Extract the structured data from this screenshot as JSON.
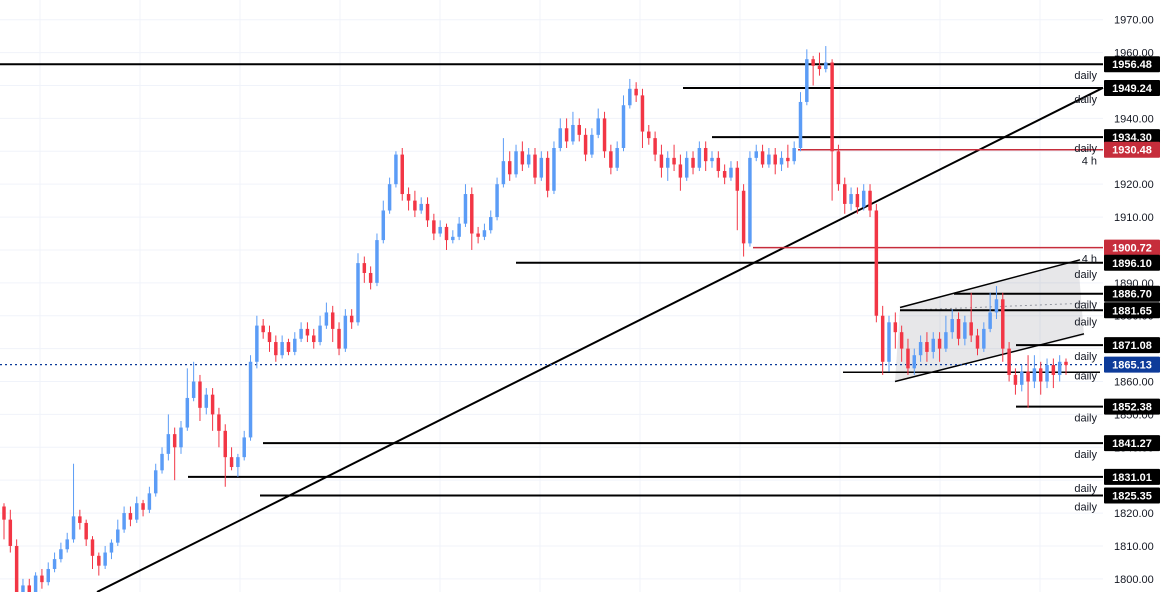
{
  "chart_data": {
    "type": "candlestick",
    "ylim": [
      1796,
      1976
    ],
    "y_ticks": [
      1800,
      1810,
      1820,
      1830,
      1840,
      1850,
      1860,
      1870,
      1880,
      1890,
      1900,
      1910,
      1920,
      1930,
      1940,
      1950,
      1960,
      1970
    ],
    "grid": true,
    "colors": {
      "up": "#5b9cf6",
      "down": "#f23645",
      "background": "#ffffff",
      "grid": "#f0f3fa",
      "level": "#000000",
      "level_4h": "#c62d3b",
      "current": "#0d3b9a"
    },
    "current_price": 1865.13,
    "levels": [
      {
        "price": 1956.48,
        "label": "1956.48",
        "timeframe": "daily",
        "color": "black"
      },
      {
        "price": 1949.24,
        "label": "1949.24",
        "timeframe": "daily",
        "color": "black"
      },
      {
        "price": 1934.3,
        "label": "1934.30",
        "timeframe": "daily",
        "color": "black"
      },
      {
        "price": 1930.48,
        "label": "1930.48",
        "timeframe": "4 h",
        "color": "red"
      },
      {
        "price": 1900.72,
        "label": "1900.72",
        "timeframe": "4 h",
        "color": "red"
      },
      {
        "price": 1896.1,
        "label": "1896.10",
        "timeframe": "daily",
        "color": "black"
      },
      {
        "price": 1886.7,
        "label": "1886.70",
        "timeframe": "daily",
        "color": "black"
      },
      {
        "price": 1881.65,
        "label": "1881.65",
        "timeframe": "daily",
        "color": "black"
      },
      {
        "price": 1871.08,
        "label": "1871.08",
        "timeframe": "daily",
        "color": "black"
      },
      {
        "price": 1865.13,
        "label": "1865.13",
        "timeframe": "daily",
        "color": "blue"
      },
      {
        "price": 1852.38,
        "label": "1852.38",
        "timeframe": "daily",
        "color": "black"
      },
      {
        "price": 1841.27,
        "label": "1841.27",
        "timeframe": "daily",
        "color": "black"
      },
      {
        "price": 1831.01,
        "label": "1831.01",
        "timeframe": "daily",
        "color": "black"
      },
      {
        "price": 1825.35,
        "label": "1825.35",
        "timeframe": "daily",
        "color": "black"
      }
    ],
    "candles": [
      [
        1822,
        1818,
        1823,
        1812
      ],
      [
        1818,
        1810,
        1821,
        1808
      ],
      [
        1810,
        1794,
        1812,
        1792
      ],
      [
        1794,
        1798,
        1800,
        1792
      ],
      [
        1798,
        1796,
        1800,
        1794
      ],
      [
        1796,
        1801,
        1802,
        1795
      ],
      [
        1801,
        1799,
        1803,
        1797
      ],
      [
        1799,
        1803,
        1805,
        1798
      ],
      [
        1803,
        1806,
        1808,
        1802
      ],
      [
        1806,
        1809,
        1811,
        1805
      ],
      [
        1809,
        1812,
        1814,
        1808
      ],
      [
        1812,
        1819,
        1835,
        1811
      ],
      [
        1819,
        1817,
        1821,
        1815
      ],
      [
        1817,
        1812,
        1818,
        1810
      ],
      [
        1812,
        1807,
        1813,
        1803
      ],
      [
        1807,
        1804,
        1808,
        1801
      ],
      [
        1804,
        1808,
        1810,
        1803
      ],
      [
        1808,
        1811,
        1812,
        1806
      ],
      [
        1811,
        1815,
        1818,
        1810
      ],
      [
        1815,
        1820,
        1822,
        1814
      ],
      [
        1820,
        1818,
        1822,
        1816
      ],
      [
        1818,
        1823,
        1825,
        1817
      ],
      [
        1823,
        1821,
        1824,
        1819
      ],
      [
        1821,
        1826,
        1828,
        1820
      ],
      [
        1826,
        1833,
        1835,
        1825
      ],
      [
        1833,
        1838,
        1840,
        1832
      ],
      [
        1838,
        1844,
        1850,
        1836
      ],
      [
        1844,
        1840,
        1846,
        1830
      ],
      [
        1840,
        1846,
        1848,
        1838
      ],
      [
        1846,
        1855,
        1864,
        1845
      ],
      [
        1855,
        1860,
        1866,
        1854
      ],
      [
        1860,
        1852,
        1862,
        1848
      ],
      [
        1852,
        1856,
        1858,
        1850
      ],
      [
        1856,
        1850,
        1858,
        1845
      ],
      [
        1850,
        1845,
        1852,
        1840
      ],
      [
        1845,
        1837,
        1847,
        1828
      ],
      [
        1837,
        1834,
        1840,
        1833
      ],
      [
        1834,
        1837,
        1838,
        1831
      ],
      [
        1837,
        1843,
        1845,
        1836
      ],
      [
        1843,
        1866,
        1868,
        1842
      ],
      [
        1866,
        1877,
        1880,
        1864
      ],
      [
        1877,
        1875,
        1879,
        1873
      ],
      [
        1875,
        1872,
        1877,
        1869
      ],
      [
        1872,
        1868,
        1874,
        1866
      ],
      [
        1868,
        1872,
        1874,
        1867
      ],
      [
        1872,
        1869,
        1873,
        1868
      ],
      [
        1869,
        1873,
        1875,
        1868
      ],
      [
        1873,
        1876,
        1878,
        1872
      ],
      [
        1876,
        1874,
        1878,
        1872
      ],
      [
        1874,
        1872,
        1876,
        1870
      ],
      [
        1872,
        1877,
        1880,
        1871
      ],
      [
        1877,
        1881,
        1884,
        1876
      ],
      [
        1881,
        1876,
        1883,
        1872
      ],
      [
        1876,
        1870,
        1878,
        1868
      ],
      [
        1870,
        1880,
        1882,
        1869
      ],
      [
        1880,
        1878,
        1882,
        1876
      ],
      [
        1878,
        1896,
        1899,
        1877
      ],
      [
        1896,
        1893,
        1898,
        1890
      ],
      [
        1893,
        1890,
        1895,
        1888
      ],
      [
        1890,
        1903,
        1905,
        1889
      ],
      [
        1903,
        1912,
        1915,
        1902
      ],
      [
        1912,
        1920,
        1922,
        1911
      ],
      [
        1920,
        1929,
        1930,
        1919
      ],
      [
        1929,
        1917,
        1931,
        1915
      ],
      [
        1917,
        1915,
        1919,
        1912
      ],
      [
        1915,
        1912,
        1918,
        1910
      ],
      [
        1912,
        1914,
        1916,
        1911
      ],
      [
        1914,
        1909,
        1916,
        1907
      ],
      [
        1909,
        1905,
        1911,
        1903
      ],
      [
        1905,
        1907,
        1909,
        1904
      ],
      [
        1907,
        1903,
        1908,
        1900
      ],
      [
        1903,
        1904,
        1906,
        1902
      ],
      [
        1904,
        1908,
        1910,
        1903
      ],
      [
        1908,
        1917,
        1920,
        1907
      ],
      [
        1917,
        1905,
        1919,
        1900
      ],
      [
        1905,
        1904,
        1907,
        1902
      ],
      [
        1904,
        1906,
        1908,
        1903
      ],
      [
        1906,
        1910,
        1912,
        1905
      ],
      [
        1910,
        1920,
        1922,
        1909
      ],
      [
        1920,
        1927,
        1934,
        1919
      ],
      [
        1927,
        1923,
        1930,
        1921
      ],
      [
        1923,
        1930,
        1932,
        1922
      ],
      [
        1930,
        1926,
        1933,
        1924
      ],
      [
        1926,
        1929,
        1931,
        1925
      ],
      [
        1929,
        1922,
        1931,
        1920
      ],
      [
        1922,
        1928,
        1930,
        1921
      ],
      [
        1928,
        1918,
        1930,
        1916
      ],
      [
        1918,
        1931,
        1933,
        1917
      ],
      [
        1931,
        1937,
        1940,
        1930
      ],
      [
        1937,
        1933,
        1940,
        1931
      ],
      [
        1933,
        1938,
        1942,
        1932
      ],
      [
        1938,
        1935,
        1940,
        1933
      ],
      [
        1935,
        1929,
        1937,
        1927
      ],
      [
        1929,
        1935,
        1937,
        1928
      ],
      [
        1935,
        1940,
        1943,
        1934
      ],
      [
        1940,
        1930,
        1942,
        1928
      ],
      [
        1930,
        1925,
        1932,
        1923
      ],
      [
        1925,
        1931,
        1933,
        1924
      ],
      [
        1931,
        1944,
        1947,
        1930
      ],
      [
        1944,
        1949,
        1952,
        1943
      ],
      [
        1949,
        1947,
        1951,
        1945
      ],
      [
        1947,
        1936,
        1949,
        1931
      ],
      [
        1936,
        1934,
        1938,
        1932
      ],
      [
        1934,
        1929,
        1936,
        1927
      ],
      [
        1929,
        1925,
        1932,
        1922
      ],
      [
        1925,
        1928,
        1930,
        1921
      ],
      [
        1928,
        1926,
        1932,
        1924
      ],
      [
        1926,
        1922,
        1929,
        1918
      ],
      [
        1922,
        1928,
        1930,
        1921
      ],
      [
        1928,
        1925,
        1930,
        1923
      ],
      [
        1925,
        1931,
        1933,
        1924
      ],
      [
        1931,
        1927,
        1933,
        1924
      ],
      [
        1927,
        1928,
        1930,
        1925
      ],
      [
        1928,
        1924,
        1930,
        1922
      ],
      [
        1924,
        1922,
        1926,
        1920
      ],
      [
        1922,
        1925,
        1927,
        1921
      ],
      [
        1925,
        1918,
        1927,
        1906
      ],
      [
        1918,
        1902,
        1920,
        1898
      ],
      [
        1902,
        1928,
        1930,
        1901
      ],
      [
        1928,
        1930,
        1932,
        1927
      ],
      [
        1930,
        1926,
        1932,
        1925
      ],
      [
        1926,
        1929,
        1931,
        1925
      ],
      [
        1929,
        1926,
        1931,
        1923
      ],
      [
        1926,
        1928,
        1930,
        1924
      ],
      [
        1928,
        1927,
        1932,
        1925
      ],
      [
        1927,
        1931,
        1933,
        1926
      ],
      [
        1931,
        1945,
        1948,
        1930
      ],
      [
        1945,
        1958,
        1961,
        1944
      ],
      [
        1958,
        1956,
        1959,
        1950
      ],
      [
        1956,
        1955,
        1960,
        1953
      ],
      [
        1955,
        1957,
        1962,
        1954
      ],
      [
        1957,
        1930,
        1958,
        1915
      ],
      [
        1930,
        1920,
        1932,
        1918
      ],
      [
        1920,
        1914,
        1922,
        1911
      ],
      [
        1914,
        1917,
        1919,
        1912
      ],
      [
        1917,
        1913,
        1919,
        1911
      ],
      [
        1913,
        1918,
        1920,
        1912
      ],
      [
        1918,
        1912,
        1920,
        1910
      ],
      [
        1912,
        1880,
        1914,
        1878
      ],
      [
        1880,
        1866,
        1883,
        1862
      ],
      [
        1866,
        1878,
        1880,
        1863
      ],
      [
        1878,
        1875,
        1881,
        1870
      ],
      [
        1875,
        1870,
        1877,
        1866
      ],
      [
        1870,
        1864,
        1873,
        1862
      ],
      [
        1864,
        1868,
        1870,
        1862
      ],
      [
        1868,
        1872,
        1874,
        1866
      ],
      [
        1872,
        1869,
        1875,
        1866
      ],
      [
        1869,
        1873,
        1875,
        1867
      ],
      [
        1873,
        1870,
        1875,
        1866
      ],
      [
        1870,
        1875,
        1880,
        1869
      ],
      [
        1875,
        1879,
        1882,
        1873
      ],
      [
        1879,
        1873,
        1881,
        1871
      ],
      [
        1873,
        1878,
        1880,
        1871
      ],
      [
        1878,
        1874,
        1887,
        1872
      ],
      [
        1874,
        1870,
        1876,
        1868
      ],
      [
        1870,
        1876,
        1878,
        1869
      ],
      [
        1876,
        1881,
        1887,
        1875
      ],
      [
        1881,
        1885,
        1889,
        1879
      ],
      [
        1885,
        1870,
        1887,
        1866
      ],
      [
        1870,
        1862,
        1872,
        1860
      ],
      [
        1862,
        1859,
        1864,
        1856
      ],
      [
        1859,
        1863,
        1865,
        1857
      ],
      [
        1863,
        1860,
        1868,
        1852
      ],
      [
        1860,
        1864,
        1868,
        1858
      ],
      [
        1864,
        1860,
        1866,
        1856
      ],
      [
        1860,
        1865,
        1867,
        1858
      ],
      [
        1865,
        1862,
        1867,
        1858
      ],
      [
        1862,
        1866,
        1868,
        1860
      ],
      [
        1866,
        1865,
        1867,
        1862
      ]
    ]
  }
}
